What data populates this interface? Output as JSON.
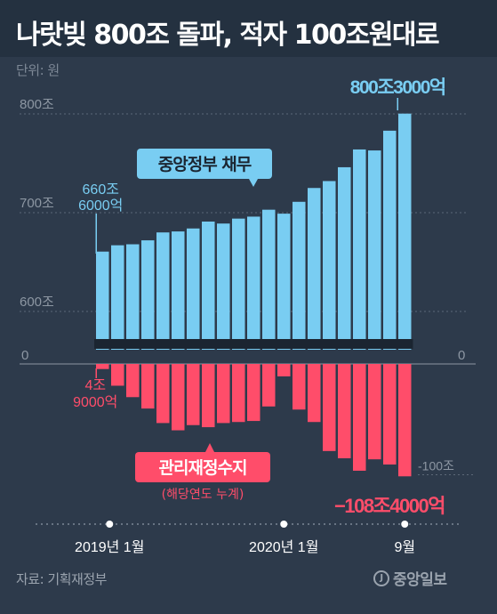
{
  "header": {
    "title": "나랏빚 800조 돌파, 적자 100조원대로",
    "unit": "단위: 원"
  },
  "footer": {
    "source": "자료: 기획재정부",
    "logo_text": "중앙일보"
  },
  "colors": {
    "background": "#2d3a4b",
    "debt_bar": "#79cdf2",
    "deficit_bar": "#ff4d6a",
    "debt_label_bg": "#79cdf2",
    "deficit_label_bg": "#ff4d6a"
  },
  "chart_data": {
    "type": "bar",
    "categories": [
      "2019-01",
      "2019-02",
      "2019-03",
      "2019-04",
      "2019-05",
      "2019-06",
      "2019-07",
      "2019-08",
      "2019-09",
      "2019-10",
      "2019-11",
      "2019-12",
      "2020-01",
      "2020-02",
      "2020-03",
      "2020-04",
      "2020-05",
      "2020-06",
      "2020-07",
      "2020-08",
      "2020-09"
    ],
    "series": [
      {
        "name": "중앙정부 채무",
        "values": [
          660.6,
          667,
          668,
          672,
          680,
          681,
          684,
          691,
          689,
          694,
          696,
          703,
          699,
          711,
          725,
          732,
          746,
          764,
          763,
          783,
          800.3
        ]
      },
      {
        "name": "관리재정수지",
        "values": [
          -4.9,
          -21,
          -32,
          -43,
          -57,
          -64,
          -59,
          -61,
          -57,
          -56,
          -55,
          -41,
          -12,
          -44,
          -56,
          -84,
          -91,
          -103,
          -92,
          -97,
          -108.4
        ]
      }
    ],
    "debt_axis": {
      "ticks": [
        "600조",
        "700조",
        "800조"
      ],
      "values": [
        600,
        700,
        800
      ]
    },
    "deficit_axis": {
      "ticks": [
        "0",
        "-100조"
      ],
      "values": [
        0,
        -100
      ]
    },
    "zero_labels": [
      "0",
      "0"
    ],
    "x_tick_labels": [
      {
        "index": 0,
        "label": "2019년 1월"
      },
      {
        "index": 12,
        "label": "2020년 1월"
      },
      {
        "index": 20,
        "label": "9월"
      }
    ],
    "annotations": {
      "debt_first": [
        "660조",
        "6000억"
      ],
      "debt_last": "800조3000억",
      "deficit_first": [
        "4조",
        "9000억"
      ],
      "deficit_last": "−108조4000억",
      "debt_series_label": "중앙정부 채무",
      "deficit_series_label": "관리재정수지",
      "deficit_series_sublabel": "(해당연도 누계)"
    },
    "grid": true
  }
}
